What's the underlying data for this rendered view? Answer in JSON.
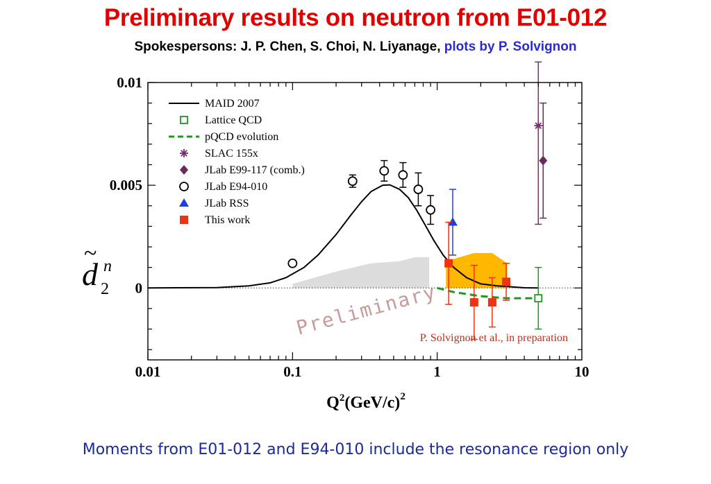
{
  "header": {
    "title": "Preliminary results on neutron from E01-012",
    "subtitle_credit": "Spokespersons: J. P. Chen, S. Choi, N. Liyanage,",
    "subtitle_plots": "plots by P. Solvignon"
  },
  "footer": {
    "text": "Moments from E01-012 and E94-010 include the resonance region only"
  },
  "chart_data": {
    "type": "scatter",
    "xscale": "log",
    "xlim": [
      0.01,
      10
    ],
    "ylim": [
      -0.0035,
      0.01
    ],
    "x_ticks": [
      0.01,
      0.1,
      1,
      10
    ],
    "x_tick_labels": [
      "0.01",
      "0.1",
      "1",
      "10"
    ],
    "y_ticks": [
      0,
      0.005,
      0.01
    ],
    "y_tick_labels": [
      "0",
      "0.005",
      "0.01"
    ],
    "xlabel": "Q",
    "xlabel_sup1": "2",
    "xlabel_rest": "(GeV/c)",
    "xlabel_sup2": "2",
    "ylabel": "d",
    "ylabel_tilde": "~",
    "ylabel_sup": "n",
    "ylabel_sub": "2",
    "watermark": "Preliminary",
    "annotation": "P. Solvignon et al., in preparation",
    "legend_position": "top-left",
    "colors": {
      "maid": "#000000",
      "lattice": "#1a9a1a",
      "pqcd": "#1a9a1a",
      "slac": "#7a2a6e",
      "e99": "#6b2a5c",
      "e94": "#000000",
      "rss": "#1f3fe0",
      "thiswork": "#ee3311",
      "syst_band": "#ffb700",
      "gray_band": "#dcdcdc",
      "watermark": "#c99a9a",
      "annotation": "#cc2b10"
    },
    "series": [
      {
        "name": "MAID 2007",
        "marker": "line",
        "x": [
          0.01,
          0.03,
          0.05,
          0.07,
          0.09,
          0.12,
          0.15,
          0.2,
          0.25,
          0.3,
          0.35,
          0.42,
          0.47,
          0.55,
          0.63,
          0.72,
          0.82,
          0.95,
          1.1,
          1.3,
          1.6,
          2.0,
          2.6,
          3.3,
          4.0,
          5.0
        ],
        "y": [
          0,
          2e-05,
          0.0001,
          0.00025,
          0.0005,
          0.001,
          0.0016,
          0.0026,
          0.0035,
          0.0042,
          0.0047,
          0.005,
          0.00502,
          0.0048,
          0.0044,
          0.0038,
          0.0031,
          0.0023,
          0.0016,
          0.001,
          0.0005,
          0.0002,
          0.0001,
          5e-05,
          1e-05,
          0
        ]
      },
      {
        "name": "Lattice QCD",
        "marker": "open-square",
        "points": [
          {
            "x": 5.0,
            "y": -0.0005,
            "err": 0.0015
          }
        ]
      },
      {
        "name": "pQCD evolution",
        "marker": "dashed-line",
        "x": [
          1.0,
          1.3,
          2.0,
          3.0,
          5.0
        ],
        "y": [
          0.0,
          -0.0002,
          -0.0004,
          -0.0005,
          -0.0005
        ]
      },
      {
        "name": "SLAC 155x",
        "marker": "asterisk",
        "points": [
          {
            "x": 5.0,
            "y": 0.0079,
            "err_up": 0.0031,
            "err_down": 0.0048
          }
        ]
      },
      {
        "name": "JLab E99-117 (comb.)",
        "marker": "filled-diamond",
        "points": [
          {
            "x": 5.4,
            "y": 0.0062,
            "err": 0.0028
          }
        ]
      },
      {
        "name": "JLab E94-010",
        "marker": "open-circle",
        "points": [
          {
            "x": 0.1,
            "y": 0.0012,
            "err": 0.0001
          },
          {
            "x": 0.26,
            "y": 0.0052,
            "err": 0.0003
          },
          {
            "x": 0.43,
            "y": 0.0057,
            "err": 0.0005
          },
          {
            "x": 0.58,
            "y": 0.0055,
            "err": 0.0006
          },
          {
            "x": 0.74,
            "y": 0.0048,
            "err": 0.0008
          },
          {
            "x": 0.9,
            "y": 0.0038,
            "err": 0.0007
          }
        ]
      },
      {
        "name": "JLab RSS",
        "marker": "filled-triangle",
        "points": [
          {
            "x": 1.28,
            "y": 0.0032,
            "err": 0.0016
          }
        ]
      },
      {
        "name": "This work",
        "marker": "filled-square",
        "points": [
          {
            "x": 1.2,
            "y": 0.0012,
            "err": 0.002
          },
          {
            "x": 1.8,
            "y": -0.0007,
            "err": 0.0018
          },
          {
            "x": 2.4,
            "y": -0.0007,
            "err": 0.0012
          },
          {
            "x": 3.0,
            "y": 0.0003,
            "err": 0.0009
          }
        ]
      }
    ],
    "bands": [
      {
        "role": "systematic",
        "x": [
          1.15,
          1.8,
          2.4,
          3.05,
          3.05,
          2.4,
          1.8,
          1.15
        ],
        "y": [
          0.0013,
          0.0017,
          0.0017,
          0.0012,
          0,
          0,
          0,
          0
        ]
      },
      {
        "role": "gray",
        "x": [
          0.1,
          0.2,
          0.35,
          0.55,
          0.7,
          0.88,
          0.88,
          0.1
        ],
        "y": [
          0.0002,
          0.0008,
          0.0012,
          0.0013,
          0.0015,
          0.0015,
          0,
          0
        ]
      }
    ]
  }
}
